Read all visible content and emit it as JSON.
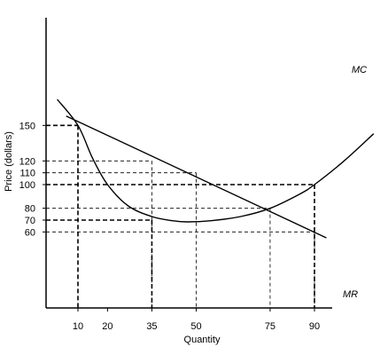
{
  "chart_data": {
    "type": "line",
    "title": "",
    "xlabel": "Quantity",
    "ylabel": "Price (dollars)",
    "xlim": [
      0,
      100
    ],
    "ylim": [
      40,
      160
    ],
    "x_ticks": [
      10,
      20,
      35,
      50,
      75,
      90
    ],
    "y_ticks": [
      60,
      70,
      80,
      100,
      110,
      120,
      150
    ],
    "grid": false,
    "series": [
      {
        "name": "MR",
        "style": "straight",
        "x": [
          6,
          94
        ],
        "y": [
          158,
          55
        ]
      },
      {
        "name": "MC",
        "style": "curve",
        "x": [
          3,
          10,
          15,
          20,
          27,
          35,
          42,
          47,
          55,
          65,
          75,
          85,
          90,
          100,
          110
        ],
        "y": [
          172,
          150,
          122,
          100,
          82,
          73,
          69.5,
          68.5,
          69.5,
          73,
          80,
          92,
          100,
          120,
          143
        ]
      }
    ],
    "guides": [
      {
        "x": 10,
        "y": 150,
        "style": "bold"
      },
      {
        "x": 35,
        "y": 120,
        "style": "thin"
      },
      {
        "x": 50,
        "y": 110,
        "style": "thin"
      },
      {
        "x": 90,
        "y": 100,
        "style": "bold"
      },
      {
        "x": 75,
        "y": 80,
        "style": "thin"
      },
      {
        "x": 35,
        "y": 70,
        "style": "bold"
      },
      {
        "x": 90,
        "y": 60,
        "style": "thin"
      }
    ]
  }
}
